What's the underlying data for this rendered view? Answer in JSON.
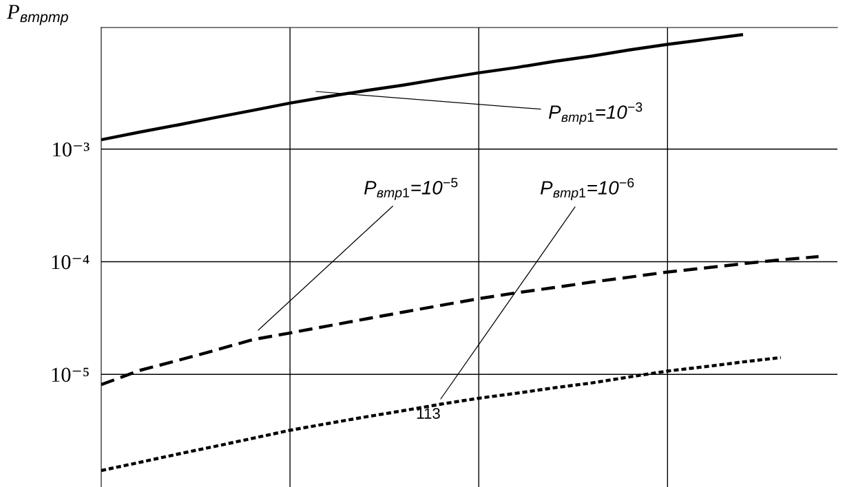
{
  "chart_data": {
    "type": "line",
    "ylabel": "P$_{втртр}$",
    "log": "y",
    "categories": [
      null,
      null,
      null,
      null,
      null,
      null,
      null,
      null,
      null,
      null,
      null,
      null,
      null,
      null,
      null,
      null,
      null,
      null,
      null,
      null
    ],
    "ylim": [
      1e-06,
      0.012
    ],
    "yticks": [
      {
        "value": 1e-05,
        "label": "10⁻⁵"
      },
      {
        "value": 0.0001,
        "label": "10⁻⁴"
      },
      {
        "value": 0.001,
        "label": "10⁻³"
      }
    ],
    "grid": true,
    "series": [
      {
        "color": "#000000",
        "line_style": "solid",
        "values": [
          0.00121,
          0.00141,
          0.00163,
          0.0019,
          0.0022,
          0.00256,
          0.00292,
          0.0033,
          0.0037,
          0.0042,
          0.00475,
          0.0053,
          0.006,
          0.0067,
          0.0076,
          0.0085,
          0.0094,
          0.0104,
          null,
          null
        ]
      },
      {
        "color": "#000000",
        "line_style": "dashed",
        "values": [
          8.1e-06,
          1.08e-05,
          1.32e-05,
          1.63e-05,
          2.03e-05,
          2.33e-05,
          2.69e-05,
          3.1e-05,
          3.57e-05,
          4.1e-05,
          4.7e-05,
          5.3e-05,
          5.9e-05,
          6.6e-05,
          7.3e-05,
          8.1e-05,
          8.8e-05,
          9.6e-05,
          0.000104,
          0.000111
        ]
      },
      {
        "color": "#000000",
        "line_style": "dotted",
        "values": [
          1.4e-06,
          1.65e-06,
          1.95e-06,
          2.29e-06,
          2.7e-06,
          3.19e-06,
          3.66e-06,
          4.19e-06,
          4.76e-06,
          5.44e-06,
          6.14e-06,
          6.8e-06,
          7.6e-06,
          8.4e-06,
          9.5e-06,
          1.07e-05,
          1.17e-05,
          1.29e-05,
          1.41e-05,
          null
        ]
      }
    ],
    "annotations": [
      "P$_{втр1}$=10$^{−3}$",
      "P$_{втр1}$=10$^{−5}$",
      "P$_{втр1}$=10$^{−6}$",
      "113"
    ]
  }
}
